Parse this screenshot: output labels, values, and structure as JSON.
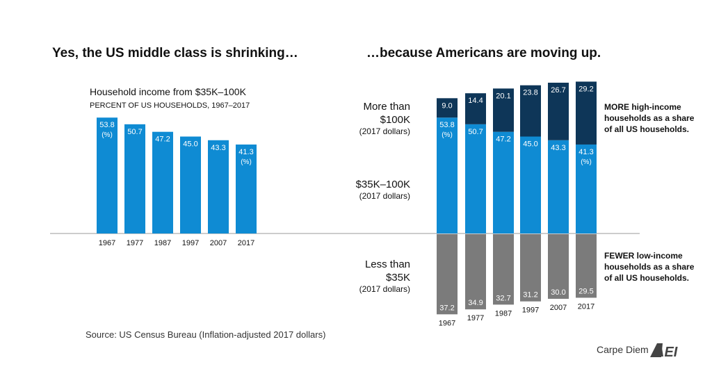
{
  "colors": {
    "middle": "#0f8bd3",
    "high": "#0e3658",
    "low": "#7b7b7b",
    "axis": "#999999",
    "text": "#111111"
  },
  "chart_data": [
    {
      "type": "bar",
      "title": "Yes, the US middle class is shrinking…",
      "subtitle": "Household income from $35K–100K",
      "subtitle2": "PERCENT OF US HOUSEHOLDS, 1967–2017",
      "categories": [
        "1967",
        "1977",
        "1987",
        "1997",
        "2007",
        "2017"
      ],
      "values": [
        53.8,
        50.7,
        47.2,
        45.0,
        43.3,
        41.3
      ],
      "unit_label": "(%)",
      "grid": false
    },
    {
      "type": "bar",
      "stacked": true,
      "title": "…because Americans are moving up.",
      "categories": [
        "1967",
        "1977",
        "1987",
        "1997",
        "2007",
        "2017"
      ],
      "series": [
        {
          "name": "$35K–100K",
          "sub": "(2017 dollars)",
          "values": [
            53.8,
            50.7,
            47.2,
            45.0,
            43.3,
            41.3
          ]
        },
        {
          "name": "More than $100K",
          "name_lines": [
            "More than",
            "$100K"
          ],
          "sub": "(2017 dollars)",
          "values": [
            9.0,
            14.4,
            20.1,
            23.8,
            26.7,
            29.2
          ]
        },
        {
          "name": "Less than $35K",
          "name_lines": [
            "Less than",
            "$35K"
          ],
          "sub": "(2017 dollars)",
          "values": [
            37.2,
            34.9,
            32.7,
            31.2,
            30.0,
            29.5
          ],
          "direction": "below"
        }
      ],
      "unit_label": "(%)",
      "annotations": {
        "high": [
          "MORE high-income",
          "households as a share",
          "of all US households."
        ],
        "low": [
          "FEWER low-income",
          "households as a share",
          "of all US households."
        ]
      },
      "grid": false
    }
  ],
  "source": "Source: US Census Bureau (Inflation-adjusted 2017 dollars)",
  "brand": {
    "text": "Carpe Diem",
    "logo": "AEI"
  }
}
